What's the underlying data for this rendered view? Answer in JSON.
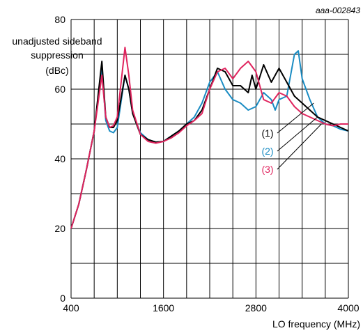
{
  "chart_data": {
    "type": "line",
    "reference": "aaa-002843",
    "ylabel_lines": [
      "unadjusted sideband",
      "suppression",
      "(dBc)"
    ],
    "xlabel": "LO frequency (MHz)",
    "xlim": [
      400,
      4000
    ],
    "ylim": [
      0,
      80
    ],
    "x_ticks": [
      400,
      1600,
      2800,
      4000
    ],
    "y_ticks": [
      0,
      20,
      40,
      60,
      80
    ],
    "x_grid_step": 300,
    "y_grid_step": 10,
    "grid": true,
    "colors": {
      "1": "#000000",
      "2": "#1a8cc3",
      "3": "#e0245e"
    },
    "series": [
      {
        "name": "(1)",
        "color": "#000000",
        "x": [
          400,
          500,
          600,
          700,
          800,
          850,
          900,
          950,
          1000,
          1100,
          1150,
          1200,
          1300,
          1400,
          1500,
          1600,
          1700,
          1800,
          1900,
          2000,
          2100,
          2200,
          2300,
          2400,
          2500,
          2600,
          2700,
          2750,
          2800,
          2900,
          3000,
          3100,
          3200,
          3300,
          3400,
          3500,
          3600,
          3700,
          3800,
          3900,
          4000
        ],
        "y": [
          20,
          27,
          37,
          48,
          68,
          52,
          49,
          49,
          51,
          64,
          60,
          53,
          47,
          45.5,
          44.8,
          45,
          46.5,
          48,
          50,
          51,
          54,
          60,
          66,
          65,
          61,
          61,
          59,
          64,
          60,
          67,
          62,
          66,
          62,
          58,
          56,
          54,
          52,
          51,
          50,
          49,
          48
        ]
      },
      {
        "name": "(2)",
        "color": "#1a8cc3",
        "x": [
          400,
          500,
          600,
          700,
          800,
          850,
          900,
          950,
          1000,
          1100,
          1150,
          1200,
          1300,
          1400,
          1500,
          1600,
          1700,
          1800,
          1900,
          2000,
          2100,
          2200,
          2300,
          2400,
          2500,
          2600,
          2700,
          2800,
          2900,
          3000,
          3050,
          3100,
          3200,
          3300,
          3350,
          3400,
          3500,
          3600,
          3700,
          3800,
          3900,
          4000
        ],
        "y": [
          20,
          27,
          37,
          48,
          66,
          51,
          48,
          47.5,
          49,
          64,
          60,
          53,
          47.5,
          45.5,
          44.8,
          45,
          46.5,
          48,
          50,
          52,
          56,
          62,
          65,
          60,
          57,
          56,
          54,
          55,
          59,
          57,
          54,
          57,
          58,
          70,
          71,
          63,
          57,
          52,
          50,
          49.5,
          48.5,
          48
        ]
      },
      {
        "name": "(3)",
        "color": "#e0245e",
        "x": [
          400,
          500,
          600,
          700,
          800,
          850,
          900,
          950,
          1000,
          1100,
          1150,
          1200,
          1300,
          1400,
          1500,
          1600,
          1700,
          1800,
          1900,
          2000,
          2100,
          2200,
          2300,
          2400,
          2500,
          2600,
          2700,
          2800,
          2900,
          3000,
          3100,
          3200,
          3300,
          3400,
          3500,
          3600,
          3700,
          3800,
          3900,
          4000
        ],
        "y": [
          20,
          27,
          37,
          48,
          64,
          52,
          49,
          49.5,
          52,
          72,
          64,
          54,
          47,
          45,
          44.5,
          45,
          46,
          47.5,
          49.5,
          51,
          53,
          60,
          65,
          66,
          63,
          66,
          68,
          65,
          57,
          56,
          59,
          58,
          55,
          53,
          52,
          51,
          50,
          49.5,
          50,
          50
        ]
      }
    ],
    "annotations": [
      {
        "label": "(1)",
        "color": "#000000",
        "pointer_x": 3550,
        "pointer_y": 56
      },
      {
        "label": "(2)",
        "color": "#1a8cc3",
        "pointer_x": 3600,
        "pointer_y": 52
      },
      {
        "label": "(3)",
        "color": "#e0245e",
        "pointer_x": 3650,
        "pointer_y": 50
      }
    ]
  }
}
